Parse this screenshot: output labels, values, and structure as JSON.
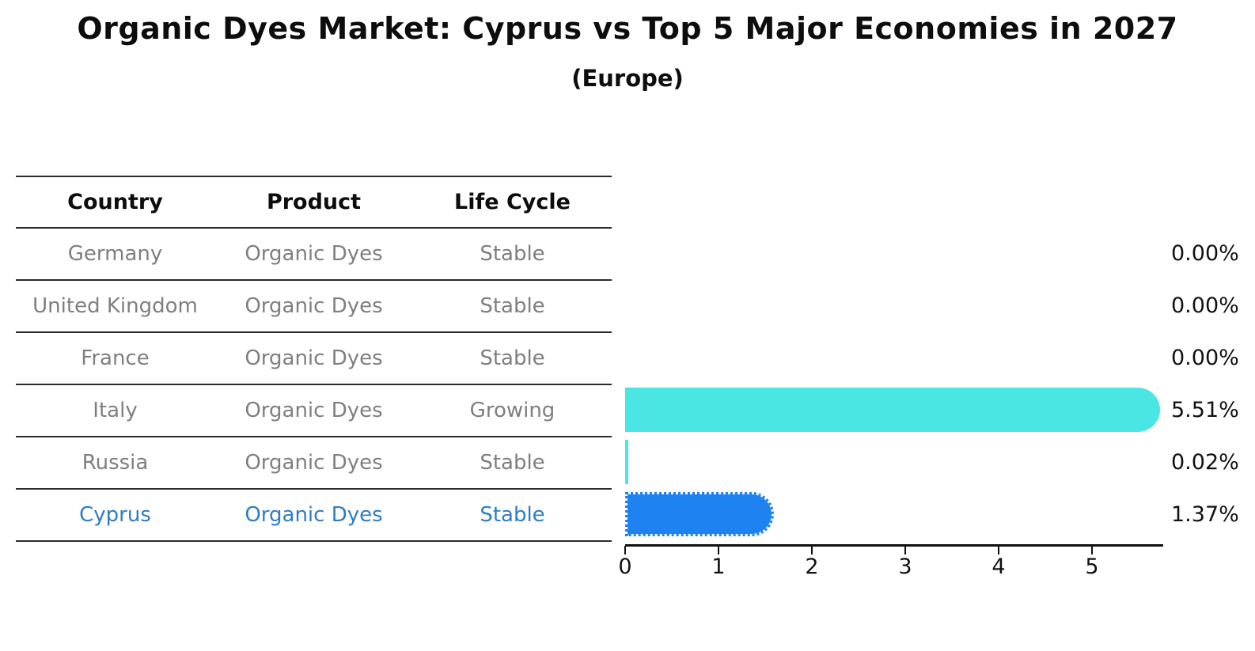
{
  "title": "Organic Dyes Market: Cyprus vs Top 5 Major Economies in 2027",
  "subtitle": "(Europe)",
  "table": {
    "headers": [
      "Country",
      "Product",
      "Life Cycle"
    ],
    "rows": [
      {
        "country": "Germany",
        "product": "Organic Dyes",
        "life_cycle": "Stable"
      },
      {
        "country": "United Kingdom",
        "product": "Organic Dyes",
        "life_cycle": "Stable"
      },
      {
        "country": "France",
        "product": "Organic Dyes",
        "life_cycle": "Stable"
      },
      {
        "country": "Italy",
        "product": "Organic Dyes",
        "life_cycle": "Growing"
      },
      {
        "country": "Russia",
        "product": "Organic Dyes",
        "life_cycle": "Stable"
      },
      {
        "country": "Cyprus",
        "product": "Organic Dyes",
        "life_cycle": "Stable"
      }
    ],
    "highlighted_row": "Cyprus"
  },
  "chart_data": {
    "type": "bar",
    "orientation": "horizontal",
    "title": "Organic Dyes Market: Cyprus vs Top 5 Major Economies in 2027",
    "subtitle": "(Europe)",
    "categories": [
      "Germany",
      "United Kingdom",
      "France",
      "Italy",
      "Russia",
      "Cyprus"
    ],
    "values": [
      0.0,
      0.0,
      0.0,
      5.51,
      0.02,
      1.37
    ],
    "value_labels": [
      "0.00%",
      "0.00%",
      "0.00%",
      "5.51%",
      "0.02%",
      "1.37%"
    ],
    "xlabel": "",
    "ylabel": "",
    "xlim": [
      0,
      5.76
    ],
    "xticks": [
      "0",
      "1",
      "2",
      "3",
      "4",
      "5"
    ],
    "grid": false,
    "legend": "none",
    "highlight_index": 5,
    "bar_colors": [
      "#4ae6e3",
      "#4ae6e3",
      "#4ae6e3",
      "#4ae6e3",
      "#4ae6e3",
      "#1e82f0"
    ],
    "colors": {
      "default_bar": "#4ae6e3",
      "highlight_bar": "#1e82f0",
      "highlight_text": "#2e7dc4",
      "table_text": "#7f7f7f",
      "header_text": "#0d0d0d",
      "axis_text": "#111111"
    }
  }
}
